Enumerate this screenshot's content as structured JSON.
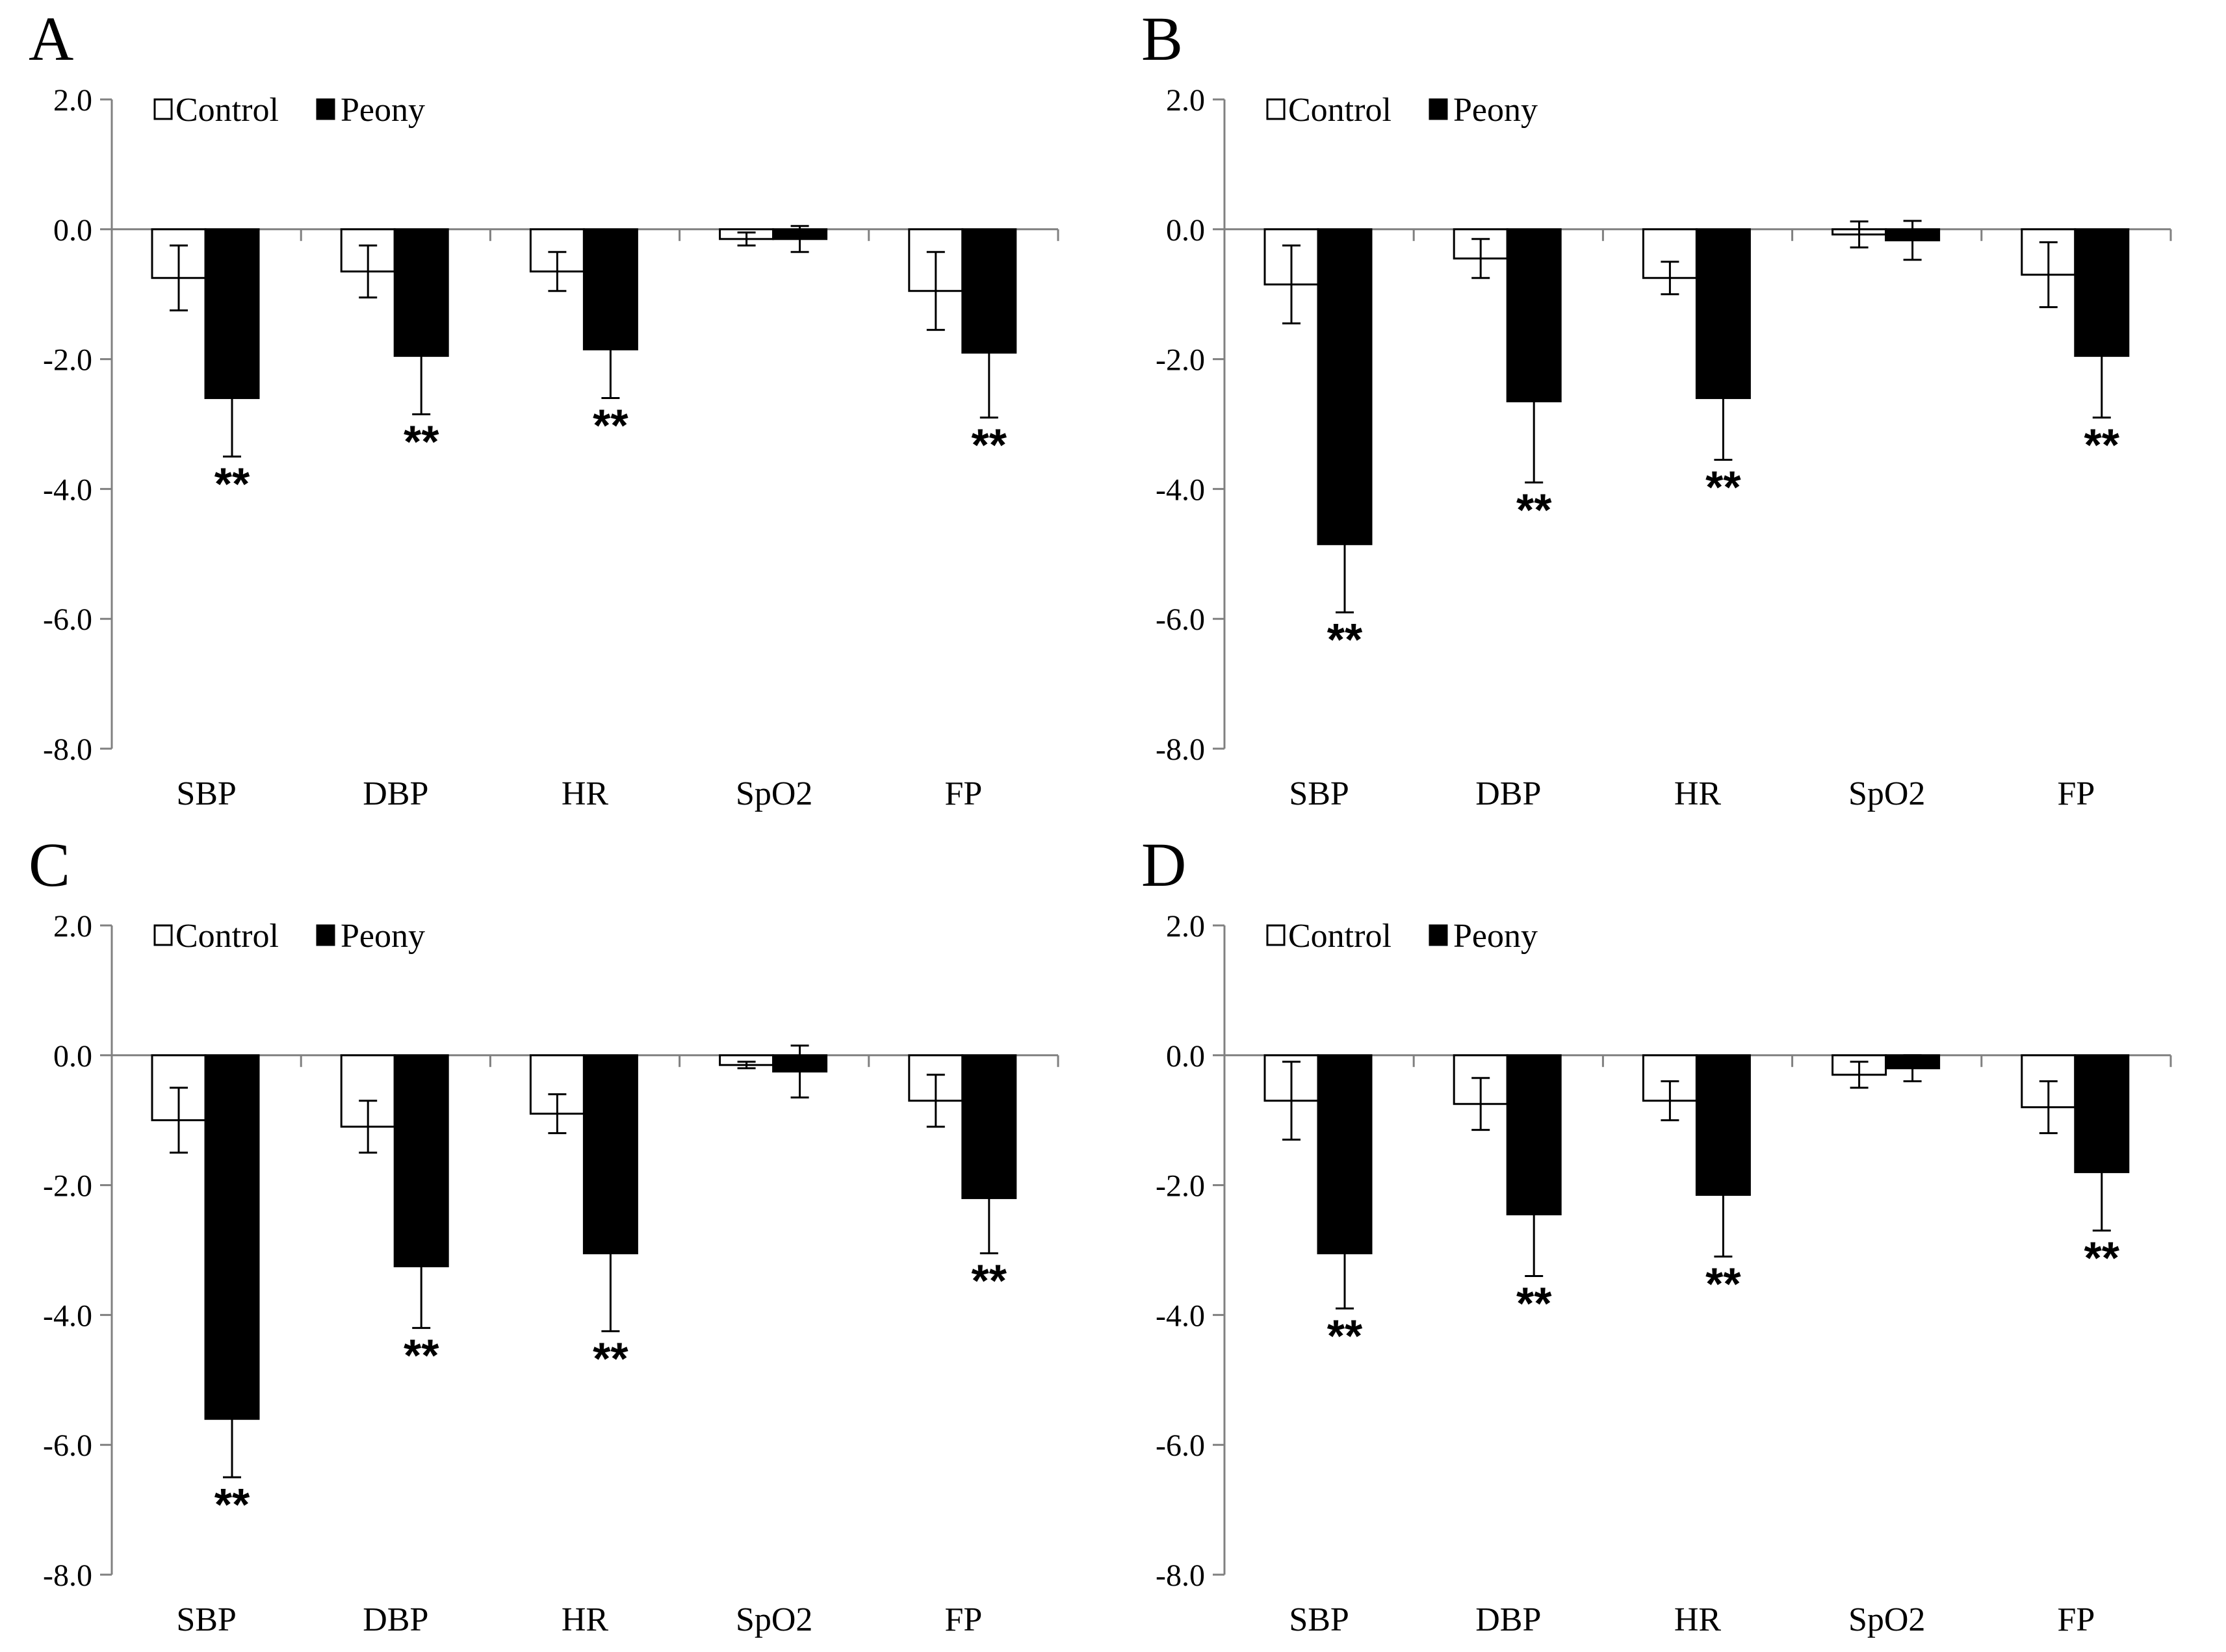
{
  "chart_data": [
    {
      "type": "bar",
      "panel": "A",
      "categories": [
        "SBP",
        "DBP",
        "HR",
        "SpO2",
        "FP"
      ],
      "ylim": [
        -8.0,
        2.0
      ],
      "yticks": [
        "2.0",
        "0.0",
        "-2.0",
        "-4.0",
        "-6.0",
        "-8.0"
      ],
      "ytick_values": [
        2,
        0,
        -2,
        -4,
        -6,
        -8
      ],
      "legend": "top-left",
      "series": [
        {
          "name": "Control",
          "values": [
            -0.75,
            -0.65,
            -0.65,
            -0.15,
            -0.95
          ],
          "errors": [
            0.5,
            0.4,
            0.3,
            0.1,
            0.6
          ]
        },
        {
          "name": "Peony",
          "values": [
            -2.6,
            -1.95,
            -1.85,
            -0.15,
            -1.9
          ],
          "errors": [
            0.9,
            0.9,
            0.75,
            0.2,
            1.0
          ]
        }
      ],
      "significance": [
        "**",
        "**",
        "**",
        "",
        "**"
      ]
    },
    {
      "type": "bar",
      "panel": "B",
      "categories": [
        "SBP",
        "DBP",
        "HR",
        "SpO2",
        "FP"
      ],
      "ylim": [
        -8.0,
        2.0
      ],
      "yticks": [
        "2.0",
        "0.0",
        "-2.0",
        "-4.0",
        "-6.0",
        "-8.0"
      ],
      "ytick_values": [
        2,
        0,
        -2,
        -4,
        -6,
        -8
      ],
      "legend": "top-left",
      "series": [
        {
          "name": "Control",
          "values": [
            -0.85,
            -0.45,
            -0.75,
            -0.08,
            -0.7
          ],
          "errors": [
            0.6,
            0.3,
            0.25,
            0.2,
            0.5
          ]
        },
        {
          "name": "Peony",
          "values": [
            -4.85,
            -2.65,
            -2.6,
            -0.17,
            -1.95
          ],
          "errors": [
            1.05,
            1.25,
            0.95,
            0.3,
            0.95
          ]
        }
      ],
      "significance": [
        "**",
        "**",
        "**",
        "",
        "**"
      ]
    },
    {
      "type": "bar",
      "panel": "C",
      "categories": [
        "SBP",
        "DBP",
        "HR",
        "SpO2",
        "FP"
      ],
      "ylim": [
        -8.0,
        2.0
      ],
      "yticks": [
        "2.0",
        "0.0",
        "-2.0",
        "-4.0",
        "-6.0",
        "-8.0"
      ],
      "ytick_values": [
        2,
        0,
        -2,
        -4,
        -6,
        -8
      ],
      "legend": "top-left",
      "series": [
        {
          "name": "Control",
          "values": [
            -1.0,
            -1.1,
            -0.9,
            -0.15,
            -0.7
          ],
          "errors": [
            0.5,
            0.4,
            0.3,
            0.05,
            0.4
          ]
        },
        {
          "name": "Peony",
          "values": [
            -5.6,
            -3.25,
            -3.05,
            -0.25,
            -2.2
          ],
          "errors": [
            0.9,
            0.95,
            1.2,
            0.4,
            0.85
          ]
        }
      ],
      "significance": [
        "**",
        "**",
        "**",
        "",
        "**"
      ]
    },
    {
      "type": "bar",
      "panel": "D",
      "categories": [
        "SBP",
        "DBP",
        "HR",
        "SpO2",
        "FP"
      ],
      "ylim": [
        -8.0,
        2.0
      ],
      "yticks": [
        "2.0",
        "0.0",
        "-2.0",
        "-4.0",
        "-6.0",
        "-8.0"
      ],
      "ytick_values": [
        2,
        0,
        -2,
        -4,
        -6,
        -8
      ],
      "legend": "top-left",
      "series": [
        {
          "name": "Control",
          "values": [
            -0.7,
            -0.75,
            -0.7,
            -0.3,
            -0.8
          ],
          "errors": [
            0.6,
            0.4,
            0.3,
            0.2,
            0.4
          ]
        },
        {
          "name": "Peony",
          "values": [
            -3.05,
            -2.45,
            -2.15,
            -0.2,
            -1.8
          ],
          "errors": [
            0.85,
            0.95,
            0.95,
            0.2,
            0.9
          ]
        }
      ],
      "significance": [
        "**",
        "**",
        "**",
        "",
        "**"
      ]
    }
  ],
  "colors": {
    "control_fill": "#ffffff",
    "peony_fill": "#000000",
    "axis": "#808080",
    "stroke": "#000000"
  }
}
